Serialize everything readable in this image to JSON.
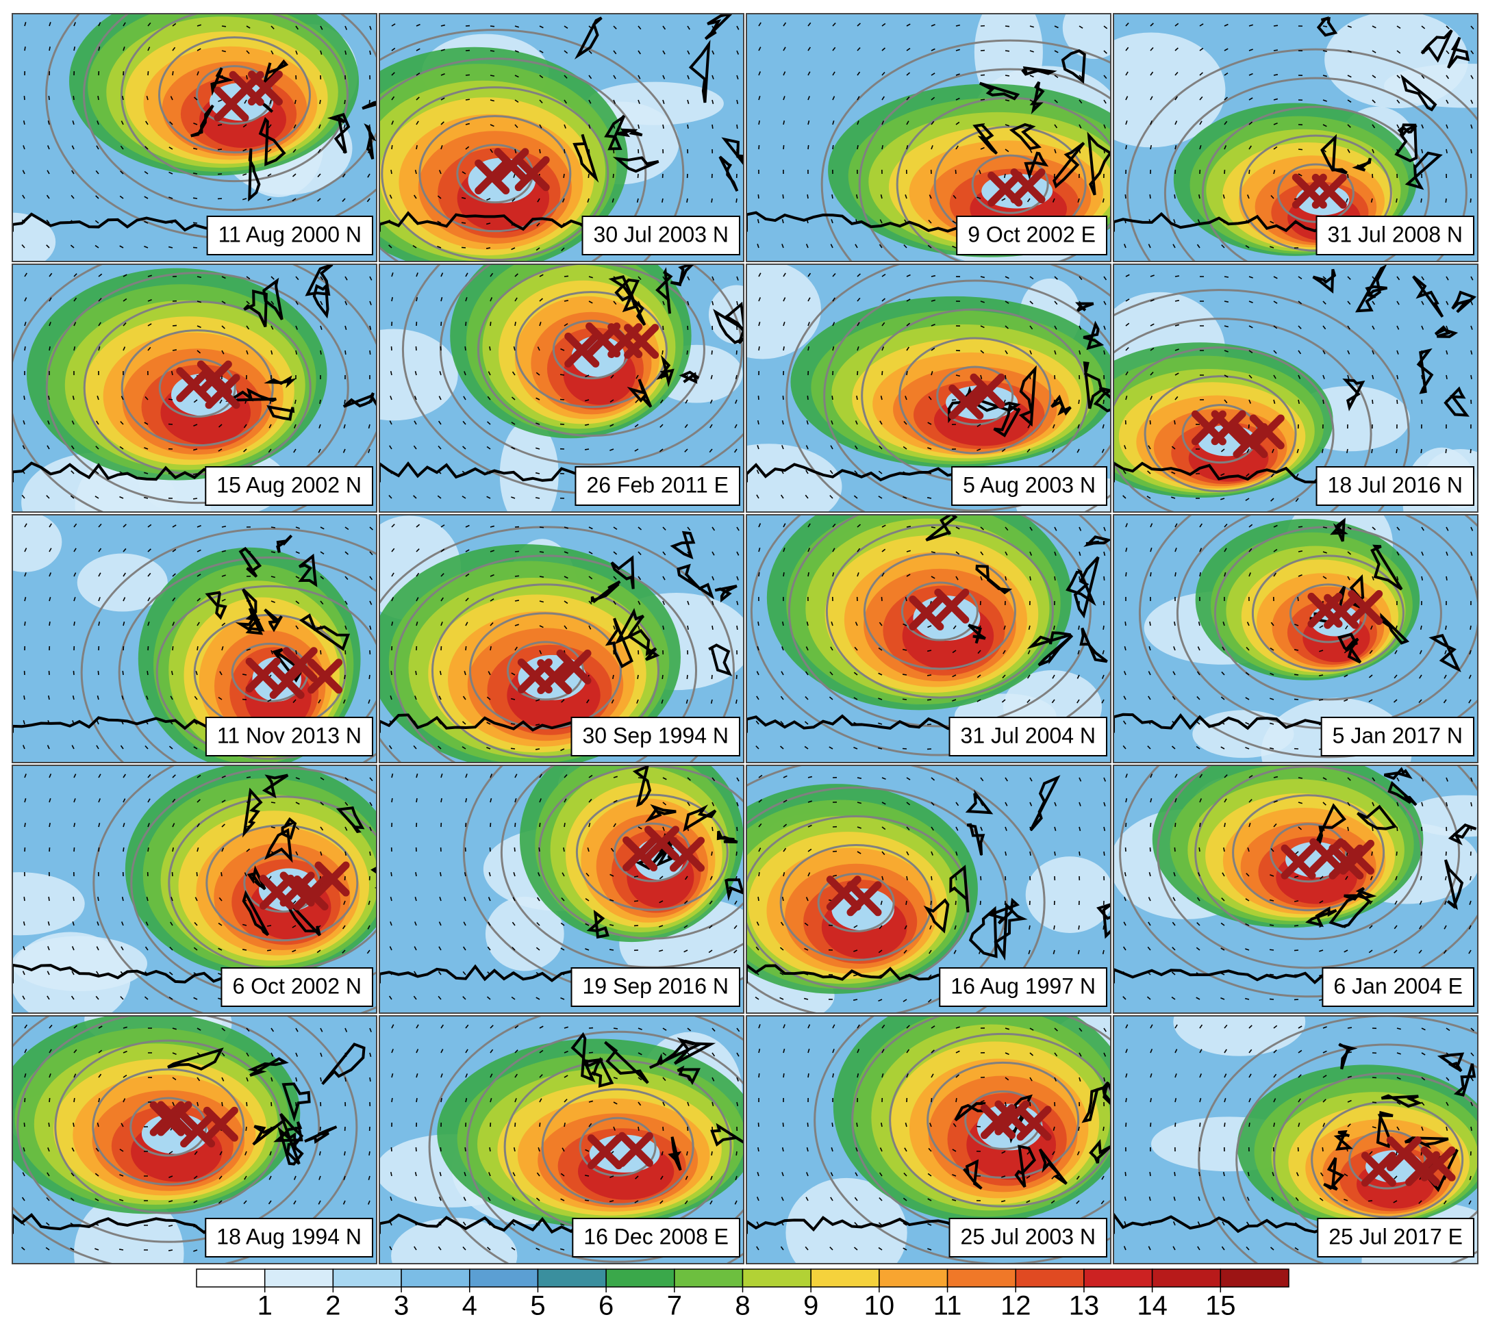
{
  "panels": [
    {
      "label": "11 Aug 2000 N"
    },
    {
      "label": "30 Jul 2003 N"
    },
    {
      "label": "9 Oct 2002 E"
    },
    {
      "label": "31 Jul 2008 N"
    },
    {
      "label": "15 Aug 2002 N"
    },
    {
      "label": "26 Feb 2011 E"
    },
    {
      "label": "5 Aug 2003 N"
    },
    {
      "label": "18 Jul 2016 N"
    },
    {
      "label": "11 Nov 2013 N"
    },
    {
      "label": "30 Sep 1994 N"
    },
    {
      "label": "31 Jul 2004 N"
    },
    {
      "label": "5 Jan 2017 N"
    },
    {
      "label": "6 Oct 2002 N"
    },
    {
      "label": "19 Sep 2016 N"
    },
    {
      "label": "16 Aug 1997 N"
    },
    {
      "label": "6 Jan 2004 E"
    },
    {
      "label": "18 Aug 1994 N"
    },
    {
      "label": "16 Dec 2008 E"
    },
    {
      "label": "25 Jul 2003 N"
    },
    {
      "label": "25 Jul 2017 E"
    }
  ],
  "colorbar": {
    "colors": [
      "#ffffff",
      "#d7ecf9",
      "#a9d8f2",
      "#7bbde6",
      "#5b9fd3",
      "#3a8f9e",
      "#3aa84a",
      "#6dbf3f",
      "#b2d235",
      "#f5d23c",
      "#f8a530",
      "#f07828",
      "#e04a22",
      "#cc2222",
      "#b81a1a",
      "#9c1414"
    ],
    "ticks": [
      1,
      2,
      3,
      4,
      5,
      6,
      7,
      8,
      9,
      10,
      11,
      12,
      13,
      14,
      15
    ]
  }
}
